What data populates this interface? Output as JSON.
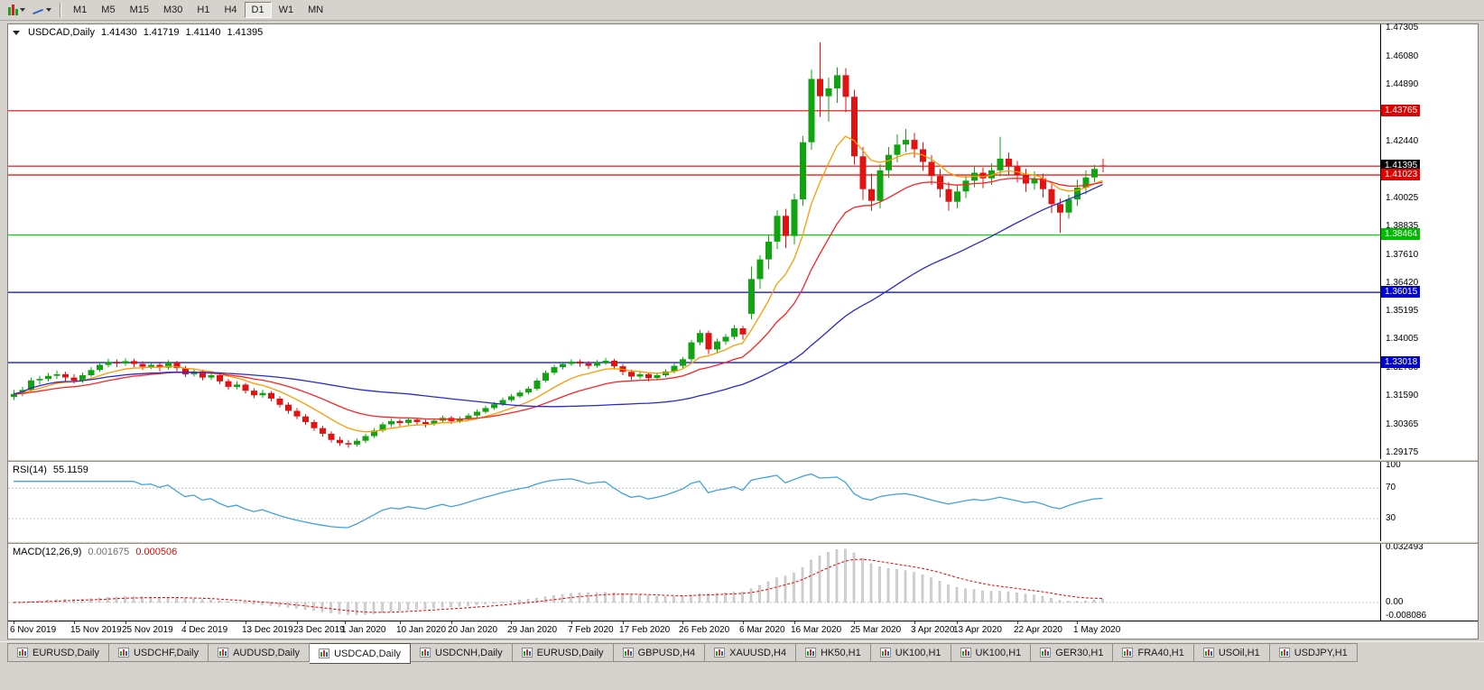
{
  "toolbar": {
    "timeframes": [
      "M1",
      "M5",
      "M15",
      "M30",
      "H1",
      "H4",
      "D1",
      "W1",
      "MN"
    ],
    "active_timeframe": "D1"
  },
  "chart_header": {
    "symbol_period": "USDCAD,Daily",
    "open": "1.41430",
    "high": "1.41719",
    "low": "1.41140",
    "close": "1.41395"
  },
  "price_axis": {
    "regular_labels": [
      "1.47305",
      "1.46080",
      "1.44890",
      "1.42440",
      "1.40025",
      "1.38835",
      "1.37610",
      "1.36420",
      "1.35195",
      "1.34005",
      "1.32780",
      "1.31590",
      "1.30365",
      "1.29175"
    ],
    "badges": [
      {
        "text": "1.43765",
        "bg": "#e00000"
      },
      {
        "text": "1.41395",
        "bg": "#000000"
      },
      {
        "text": "1.41023",
        "bg": "#e00000"
      },
      {
        "text": "1.38464",
        "bg": "#00bb00"
      },
      {
        "text": "1.36015",
        "bg": "#0000cc"
      },
      {
        "text": "1.33018",
        "bg": "#0000cc"
      }
    ]
  },
  "horizontal_lines": [
    {
      "price": 1.43765,
      "color": "#f00000"
    },
    {
      "price": 1.414,
      "color": "#f00000"
    },
    {
      "price": 1.41023,
      "color": "#f00000"
    },
    {
      "price": 1.38464,
      "color": "#00d800"
    },
    {
      "price": 1.36015,
      "color": "#0000e0"
    },
    {
      "price": 1.33018,
      "color": "#0000e0"
    }
  ],
  "time_axis": {
    "labels": [
      {
        "text": "6 Nov 2019",
        "i": 0
      },
      {
        "text": "15 Nov 2019",
        "i": 7
      },
      {
        "text": "25 Nov 2019",
        "i": 13
      },
      {
        "text": "4 Dec 2019",
        "i": 20
      },
      {
        "text": "13 Dec 2019",
        "i": 27
      },
      {
        "text": "23 Dec 2019",
        "i": 33
      },
      {
        "text": "1 Jan 2020",
        "i": 38.6
      },
      {
        "text": "10 Jan 2020",
        "i": 45
      },
      {
        "text": "20 Jan 2020",
        "i": 51
      },
      {
        "text": "29 Jan 2020",
        "i": 58
      },
      {
        "text": "7 Feb 2020",
        "i": 65
      },
      {
        "text": "17 Feb 2020",
        "i": 71
      },
      {
        "text": "26 Feb 2020",
        "i": 78
      },
      {
        "text": "6 Mar 2020",
        "i": 85
      },
      {
        "text": "16 Mar 2020",
        "i": 91
      },
      {
        "text": "25 Mar 2020",
        "i": 98
      },
      {
        "text": "3 Apr 2020",
        "i": 105
      },
      {
        "text": "13 Apr 2020",
        "i": 110
      },
      {
        "text": "22 Apr 2020",
        "i": 117
      },
      {
        "text": "1 May 2020",
        "i": 124
      }
    ]
  },
  "indicators": {
    "rsi": {
      "name": "RSI(14)",
      "value": "55.1159",
      "period": 14,
      "line_color": "#41a2dc",
      "scale_max": 105,
      "scale_min": 0,
      "levels": [
        {
          "v": 100,
          "label": "100"
        },
        {
          "v": 70,
          "label": "70"
        },
        {
          "v": 30,
          "label": "30"
        }
      ]
    },
    "macd": {
      "name": "MACD(12,26,9)",
      "value_main": "0.001675",
      "value_signal": "0.000506",
      "fast": 12,
      "slow": 26,
      "signal": 9,
      "hist_color": "#d6d6d6",
      "hist_border": "#ababab",
      "signal_color": "#ee0000",
      "scale_max": 0.032493,
      "scale_min": -0.008086,
      "axis_labels": [
        {
          "v": 0.032493,
          "label": "0.032493"
        },
        {
          "v": 0,
          "label": "0.00"
        },
        {
          "v": -0.008086,
          "label": "-0.008086"
        }
      ]
    }
  },
  "chart_data": {
    "type": "candlestick",
    "symbol": "USDCAD",
    "period": "Daily",
    "bull_color": "#10a510",
    "bear_color": "#e11212",
    "price_range": {
      "top": 1.4745,
      "bottom": 1.289
    },
    "moving_averages": [
      {
        "kind": "ema",
        "period": 9,
        "color": "#ff9900"
      },
      {
        "kind": "ema",
        "period": 21,
        "color": "#ff2222"
      },
      {
        "kind": "sma",
        "period": 45,
        "color": "#2929cc"
      }
    ],
    "candles": [
      [
        1.3155,
        1.3185,
        1.3142,
        1.3168
      ],
      [
        1.3168,
        1.3198,
        1.3158,
        1.3185
      ],
      [
        1.3185,
        1.3238,
        1.3178,
        1.3226
      ],
      [
        1.3226,
        1.3245,
        1.3208,
        1.3232
      ],
      [
        1.3232,
        1.3258,
        1.3222,
        1.3245
      ],
      [
        1.3245,
        1.3268,
        1.3232,
        1.3252
      ],
      [
        1.3252,
        1.3262,
        1.3222,
        1.3238
      ],
      [
        1.3238,
        1.3252,
        1.3212,
        1.3225
      ],
      [
        1.3225,
        1.326,
        1.3215,
        1.3248
      ],
      [
        1.3248,
        1.3282,
        1.324,
        1.327
      ],
      [
        1.327,
        1.3305,
        1.3262,
        1.3292
      ],
      [
        1.3292,
        1.3318,
        1.3282,
        1.3305
      ],
      [
        1.3305,
        1.3315,
        1.3282,
        1.3298
      ],
      [
        1.3298,
        1.332,
        1.3288,
        1.3308
      ],
      [
        1.3308,
        1.3318,
        1.3282,
        1.3296
      ],
      [
        1.3296,
        1.3308,
        1.327,
        1.3284
      ],
      [
        1.3284,
        1.3302,
        1.3274,
        1.3292
      ],
      [
        1.3292,
        1.33,
        1.3265,
        1.328
      ],
      [
        1.328,
        1.3312,
        1.3272,
        1.3302
      ],
      [
        1.3302,
        1.331,
        1.3265,
        1.3278
      ],
      [
        1.3278,
        1.3288,
        1.324,
        1.3252
      ],
      [
        1.3252,
        1.3275,
        1.3242,
        1.3264
      ],
      [
        1.3264,
        1.3272,
        1.3226,
        1.3238
      ],
      [
        1.3238,
        1.3262,
        1.3228,
        1.3248
      ],
      [
        1.3248,
        1.3256,
        1.321,
        1.3222
      ],
      [
        1.3222,
        1.3232,
        1.3186,
        1.3198
      ],
      [
        1.3198,
        1.3222,
        1.3188,
        1.3208
      ],
      [
        1.3208,
        1.3215,
        1.317,
        1.3182
      ],
      [
        1.3182,
        1.3192,
        1.315,
        1.3162
      ],
      [
        1.3162,
        1.3185,
        1.3152,
        1.3172
      ],
      [
        1.3172,
        1.318,
        1.3136,
        1.3148
      ],
      [
        1.3148,
        1.3158,
        1.311,
        1.3122
      ],
      [
        1.3122,
        1.3132,
        1.3084,
        1.3096
      ],
      [
        1.3096,
        1.3108,
        1.306,
        1.3072
      ],
      [
        1.3072,
        1.3082,
        1.3036,
        1.3048
      ],
      [
        1.3048,
        1.3058,
        1.301,
        1.3022
      ],
      [
        1.3022,
        1.3032,
        1.2986,
        1.2998
      ],
      [
        1.2998,
        1.3008,
        1.296,
        1.2972
      ],
      [
        1.2972,
        1.2985,
        1.2946,
        1.2958
      ],
      [
        1.2958,
        1.2972,
        1.2938,
        1.2952
      ],
      [
        1.2952,
        1.2978,
        1.2944,
        1.2968
      ],
      [
        1.2968,
        1.2998,
        1.2958,
        1.2988
      ],
      [
        1.2988,
        1.3022,
        1.298,
        1.3012
      ],
      [
        1.3012,
        1.3048,
        1.3004,
        1.3038
      ],
      [
        1.3038,
        1.3062,
        1.3028,
        1.3052
      ],
      [
        1.3052,
        1.306,
        1.303,
        1.3044
      ],
      [
        1.3044,
        1.3068,
        1.3036,
        1.3058
      ],
      [
        1.3058,
        1.3066,
        1.3036,
        1.3048
      ],
      [
        1.3048,
        1.3058,
        1.3026,
        1.304
      ],
      [
        1.304,
        1.3064,
        1.3032,
        1.3054
      ],
      [
        1.3054,
        1.3076,
        1.3046,
        1.3066
      ],
      [
        1.3066,
        1.3074,
        1.304,
        1.3052
      ],
      [
        1.3052,
        1.3072,
        1.3044,
        1.3062
      ],
      [
        1.3062,
        1.3086,
        1.3054,
        1.3076
      ],
      [
        1.3076,
        1.3102,
        1.3068,
        1.3092
      ],
      [
        1.3092,
        1.3118,
        1.3084,
        1.3108
      ],
      [
        1.3108,
        1.3134,
        1.31,
        1.3124
      ],
      [
        1.3124,
        1.3152,
        1.3116,
        1.3142
      ],
      [
        1.3142,
        1.3168,
        1.3134,
        1.3158
      ],
      [
        1.3158,
        1.3184,
        1.315,
        1.3174
      ],
      [
        1.3174,
        1.32,
        1.3166,
        1.319
      ],
      [
        1.319,
        1.3235,
        1.3182,
        1.3225
      ],
      [
        1.3225,
        1.3268,
        1.3218,
        1.3258
      ],
      [
        1.3258,
        1.3292,
        1.325,
        1.3282
      ],
      [
        1.3282,
        1.3306,
        1.3272,
        1.3296
      ],
      [
        1.3296,
        1.3316,
        1.3288,
        1.3306
      ],
      [
        1.3306,
        1.3314,
        1.3284,
        1.3298
      ],
      [
        1.3298,
        1.3308,
        1.3274,
        1.3288
      ],
      [
        1.3288,
        1.3312,
        1.328,
        1.3302
      ],
      [
        1.3302,
        1.3322,
        1.3292,
        1.331
      ],
      [
        1.331,
        1.3318,
        1.3272,
        1.3286
      ],
      [
        1.3286,
        1.3296,
        1.3248,
        1.3262
      ],
      [
        1.3262,
        1.3272,
        1.3228,
        1.3242
      ],
      [
        1.3242,
        1.3264,
        1.3232,
        1.3252
      ],
      [
        1.3252,
        1.326,
        1.3222,
        1.3236
      ],
      [
        1.3236,
        1.3258,
        1.3226,
        1.3248
      ],
      [
        1.3248,
        1.3274,
        1.324,
        1.3264
      ],
      [
        1.3264,
        1.3298,
        1.3256,
        1.3288
      ],
      [
        1.3288,
        1.3326,
        1.3278,
        1.3316
      ],
      [
        1.3316,
        1.3398,
        1.3306,
        1.3388
      ],
      [
        1.3388,
        1.3442,
        1.3376,
        1.3428
      ],
      [
        1.3428,
        1.3438,
        1.3338,
        1.3358
      ],
      [
        1.3358,
        1.3404,
        1.3344,
        1.3392
      ],
      [
        1.3392,
        1.3424,
        1.3378,
        1.3412
      ],
      [
        1.3412,
        1.3462,
        1.34,
        1.3448
      ],
      [
        1.3448,
        1.3458,
        1.34,
        1.3422
      ],
      [
        1.351,
        1.3712,
        1.3486,
        1.3658
      ],
      [
        1.3658,
        1.376,
        1.3616,
        1.3742
      ],
      [
        1.3742,
        1.3848,
        1.37,
        1.3818
      ],
      [
        1.3818,
        1.3952,
        1.3786,
        1.3928
      ],
      [
        1.3928,
        1.3958,
        1.379,
        1.3842
      ],
      [
        1.3842,
        1.4022,
        1.3806,
        1.3998
      ],
      [
        1.3998,
        1.4268,
        1.397,
        1.4242
      ],
      [
        1.4242,
        1.4552,
        1.421,
        1.4512
      ],
      [
        1.4512,
        1.4668,
        1.435,
        1.4438
      ],
      [
        1.4438,
        1.4518,
        1.433,
        1.4472
      ],
      [
        1.4472,
        1.4562,
        1.441,
        1.4528
      ],
      [
        1.4528,
        1.4558,
        1.437,
        1.4436
      ],
      [
        1.4436,
        1.4466,
        1.4146,
        1.4182
      ],
      [
        1.4182,
        1.4222,
        1.3996,
        1.4042
      ],
      [
        1.4042,
        1.4108,
        1.395,
        1.3992
      ],
      [
        1.3992,
        1.4148,
        1.396,
        1.4122
      ],
      [
        1.4122,
        1.4222,
        1.409,
        1.4188
      ],
      [
        1.4188,
        1.4276,
        1.4156,
        1.4232
      ],
      [
        1.4232,
        1.4298,
        1.42,
        1.4252
      ],
      [
        1.4252,
        1.4282,
        1.4176,
        1.4212
      ],
      [
        1.4212,
        1.4242,
        1.412,
        1.4158
      ],
      [
        1.4158,
        1.4188,
        1.406,
        1.4098
      ],
      [
        1.4098,
        1.4128,
        1.4006,
        1.4042
      ],
      [
        1.4042,
        1.4072,
        1.395,
        1.3988
      ],
      [
        1.3988,
        1.4058,
        1.396,
        1.4032
      ],
      [
        1.4032,
        1.4102,
        1.4004,
        1.4078
      ],
      [
        1.4078,
        1.4138,
        1.405,
        1.4112
      ],
      [
        1.4112,
        1.4135,
        1.4046,
        1.4088
      ],
      [
        1.4088,
        1.4152,
        1.406,
        1.4122
      ],
      [
        1.4122,
        1.4265,
        1.4096,
        1.4172
      ],
      [
        1.4172,
        1.4198,
        1.41,
        1.4138
      ],
      [
        1.4138,
        1.4162,
        1.407,
        1.4102
      ],
      [
        1.4102,
        1.4128,
        1.403,
        1.4066
      ],
      [
        1.4066,
        1.4118,
        1.404,
        1.4088
      ],
      [
        1.4088,
        1.4108,
        1.4006,
        1.4042
      ],
      [
        1.4042,
        1.4062,
        1.394,
        1.3978
      ],
      [
        1.3978,
        1.4002,
        1.3855,
        1.3942
      ],
      [
        1.3942,
        1.4018,
        1.3916,
        1.3998
      ],
      [
        1.3998,
        1.4082,
        1.397,
        1.4048
      ],
      [
        1.4048,
        1.4122,
        1.402,
        1.4092
      ],
      [
        1.4092,
        1.4145,
        1.4072,
        1.4128
      ],
      [
        1.4143,
        1.41719,
        1.4114,
        1.41395
      ]
    ]
  },
  "tabs": {
    "active_index": 3,
    "items": [
      "EURUSD,Daily",
      "USDCHF,Daily",
      "AUDUSD,Daily",
      "USDCAD,Daily",
      "USDCNH,Daily",
      "EURUSD,Daily",
      "GBPUSD,H4",
      "XAUUSD,H4",
      "HK50,H1",
      "UK100,H1",
      "UK100,H1",
      "GER30,H1",
      "FRA40,H1",
      "USOil,H1",
      "USDJPY,H1"
    ]
  }
}
